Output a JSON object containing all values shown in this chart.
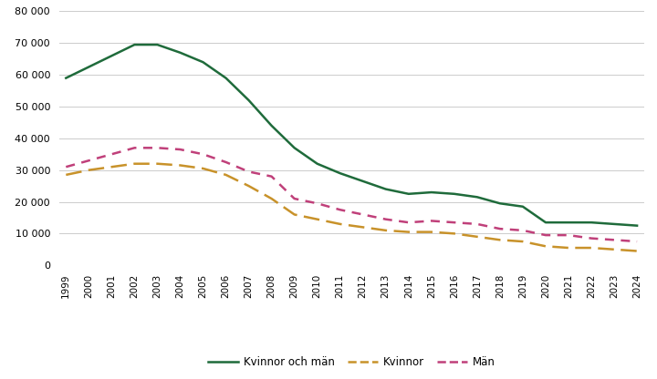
{
  "years": [
    1999,
    2000,
    2001,
    2002,
    2003,
    2004,
    2005,
    2006,
    2007,
    2008,
    2009,
    2010,
    2011,
    2012,
    2013,
    2014,
    2015,
    2016,
    2017,
    2018,
    2019,
    2020,
    2021,
    2022,
    2023,
    2024
  ],
  "kvinnor_och_man": [
    59000,
    62500,
    66000,
    69500,
    69500,
    67000,
    64000,
    59000,
    52000,
    44000,
    37000,
    32000,
    29000,
    26500,
    24000,
    22500,
    23000,
    22500,
    21500,
    19500,
    18500,
    13500,
    13500,
    13500,
    13000,
    12500
  ],
  "kvinnor": [
    28500,
    30000,
    31000,
    32000,
    32000,
    31500,
    30500,
    28500,
    25000,
    21000,
    16000,
    14500,
    13000,
    12000,
    11000,
    10500,
    10500,
    10000,
    9000,
    8000,
    7500,
    6000,
    5500,
    5500,
    5000,
    4500
  ],
  "man": [
    31000,
    33000,
    35000,
    37000,
    37000,
    36500,
    35000,
    32500,
    29500,
    28000,
    21000,
    19500,
    17500,
    16000,
    14500,
    13500,
    14000,
    13500,
    13000,
    11500,
    11000,
    9500,
    9500,
    8500,
    8000,
    7500
  ],
  "color_total": "#1f6b3b",
  "color_kvinnor": "#c8922a",
  "color_man": "#c0407a",
  "ylim": [
    0,
    80000
  ],
  "yticks": [
    0,
    10000,
    20000,
    30000,
    40000,
    50000,
    60000,
    70000,
    80000
  ],
  "background_color": "#ffffff",
  "grid_color": "#cccccc",
  "legend_labels": [
    "Kvinnor och män",
    "Kvinnor",
    "Män"
  ]
}
